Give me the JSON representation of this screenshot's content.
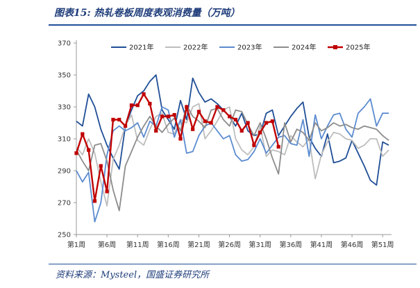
{
  "figure_title": "图表15:  热轧卷板周度表观消费量（万吨）",
  "source": "资料来源：Mysteel，国盛证券研究所",
  "chart_data": {
    "type": "line",
    "ylim": [
      250,
      370
    ],
    "yticks": [
      250,
      270,
      290,
      310,
      330,
      350,
      370
    ],
    "x_count": 52,
    "xticks": [
      {
        "week": 1,
        "label": "第1周"
      },
      {
        "week": 6,
        "label": "第6周"
      },
      {
        "week": 11,
        "label": "第11周"
      },
      {
        "week": 16,
        "label": "第16周"
      },
      {
        "week": 21,
        "label": "第21周"
      },
      {
        "week": 26,
        "label": "第26周"
      },
      {
        "week": 31,
        "label": "第31周"
      },
      {
        "week": 36,
        "label": "第36周"
      },
      {
        "week": 41,
        "label": "第41周"
      },
      {
        "week": 46,
        "label": "第46周"
      },
      {
        "week": 51,
        "label": "第51周"
      }
    ],
    "legend": "top",
    "series": [
      {
        "name": "2021年",
        "color": "#1f4e96",
        "marker": false,
        "values": [
          321,
          318,
          338,
          330,
          316,
          306,
          298,
          291,
          318,
          328,
          337,
          340,
          346,
          350,
          328,
          322,
          316,
          334,
          322,
          348,
          339,
          333,
          335,
          332,
          328,
          324,
          318,
          326,
          315,
          312,
          313,
          326,
          328,
          312,
          318,
          324,
          329,
          333,
          311,
          304,
          299,
          313,
          295,
          296,
          298,
          309,
          301,
          293,
          284,
          281,
          308,
          306
        ]
      },
      {
        "name": "2022年",
        "color": "#bdbdbd",
        "marker": false,
        "values": [
          305,
          300,
          310,
          301,
          283,
          268,
          297,
          306,
          318,
          325,
          309,
          306,
          316,
          324,
          326,
          314,
          313,
          322,
          320,
          330,
          332,
          310,
          315,
          321,
          328,
          330,
          310,
          303,
          300,
          305,
          318,
          299,
          303,
          302,
          300,
          312,
          308,
          305,
          310,
          285,
          300,
          308,
          314,
          313,
          310,
          309,
          304,
          306,
          310,
          310,
          299,
          303
        ]
      },
      {
        "name": "2023年",
        "color": "#5b8bd0",
        "marker": false,
        "values": [
          290,
          283,
          289,
          258,
          270,
          300,
          315,
          318,
          315,
          317,
          320,
          311,
          321,
          318,
          330,
          328,
          311,
          322,
          301,
          302,
          312,
          318,
          320,
          315,
          310,
          312,
          300,
          296,
          297,
          302,
          310,
          301,
          306,
          311,
          312,
          307,
          306,
          322,
          299,
          325,
          310,
          318,
          325,
          326,
          316,
          311,
          326,
          330,
          335,
          318,
          326,
          326
        ]
      },
      {
        "name": "2024年",
        "color": "#8c8c8c",
        "marker": false,
        "values": [
          303,
          296,
          290,
          306,
          307,
          296,
          278,
          265,
          293,
          302,
          311,
          318,
          324,
          318,
          314,
          319,
          323,
          315,
          331,
          324,
          321,
          317,
          328,
          329,
          322,
          318,
          328,
          327,
          319,
          312,
          320,
          310,
          298,
          288,
          320,
          308,
          316,
          314,
          309,
          320,
          315,
          317,
          320,
          318,
          319,
          317,
          316,
          318,
          317,
          316,
          312,
          309
        ]
      },
      {
        "name": "2025年",
        "color": "#c00000",
        "marker": true,
        "values": [
          301,
          313,
          303,
          271,
          293,
          277,
          322,
          322,
          318,
          331,
          331,
          338,
          332,
          315,
          324,
          324,
          325,
          310,
          330,
          316,
          327,
          321,
          320,
          330,
          328,
          324,
          322,
          315,
          320,
          306,
          314,
          320,
          321,
          305
        ]
      }
    ]
  }
}
